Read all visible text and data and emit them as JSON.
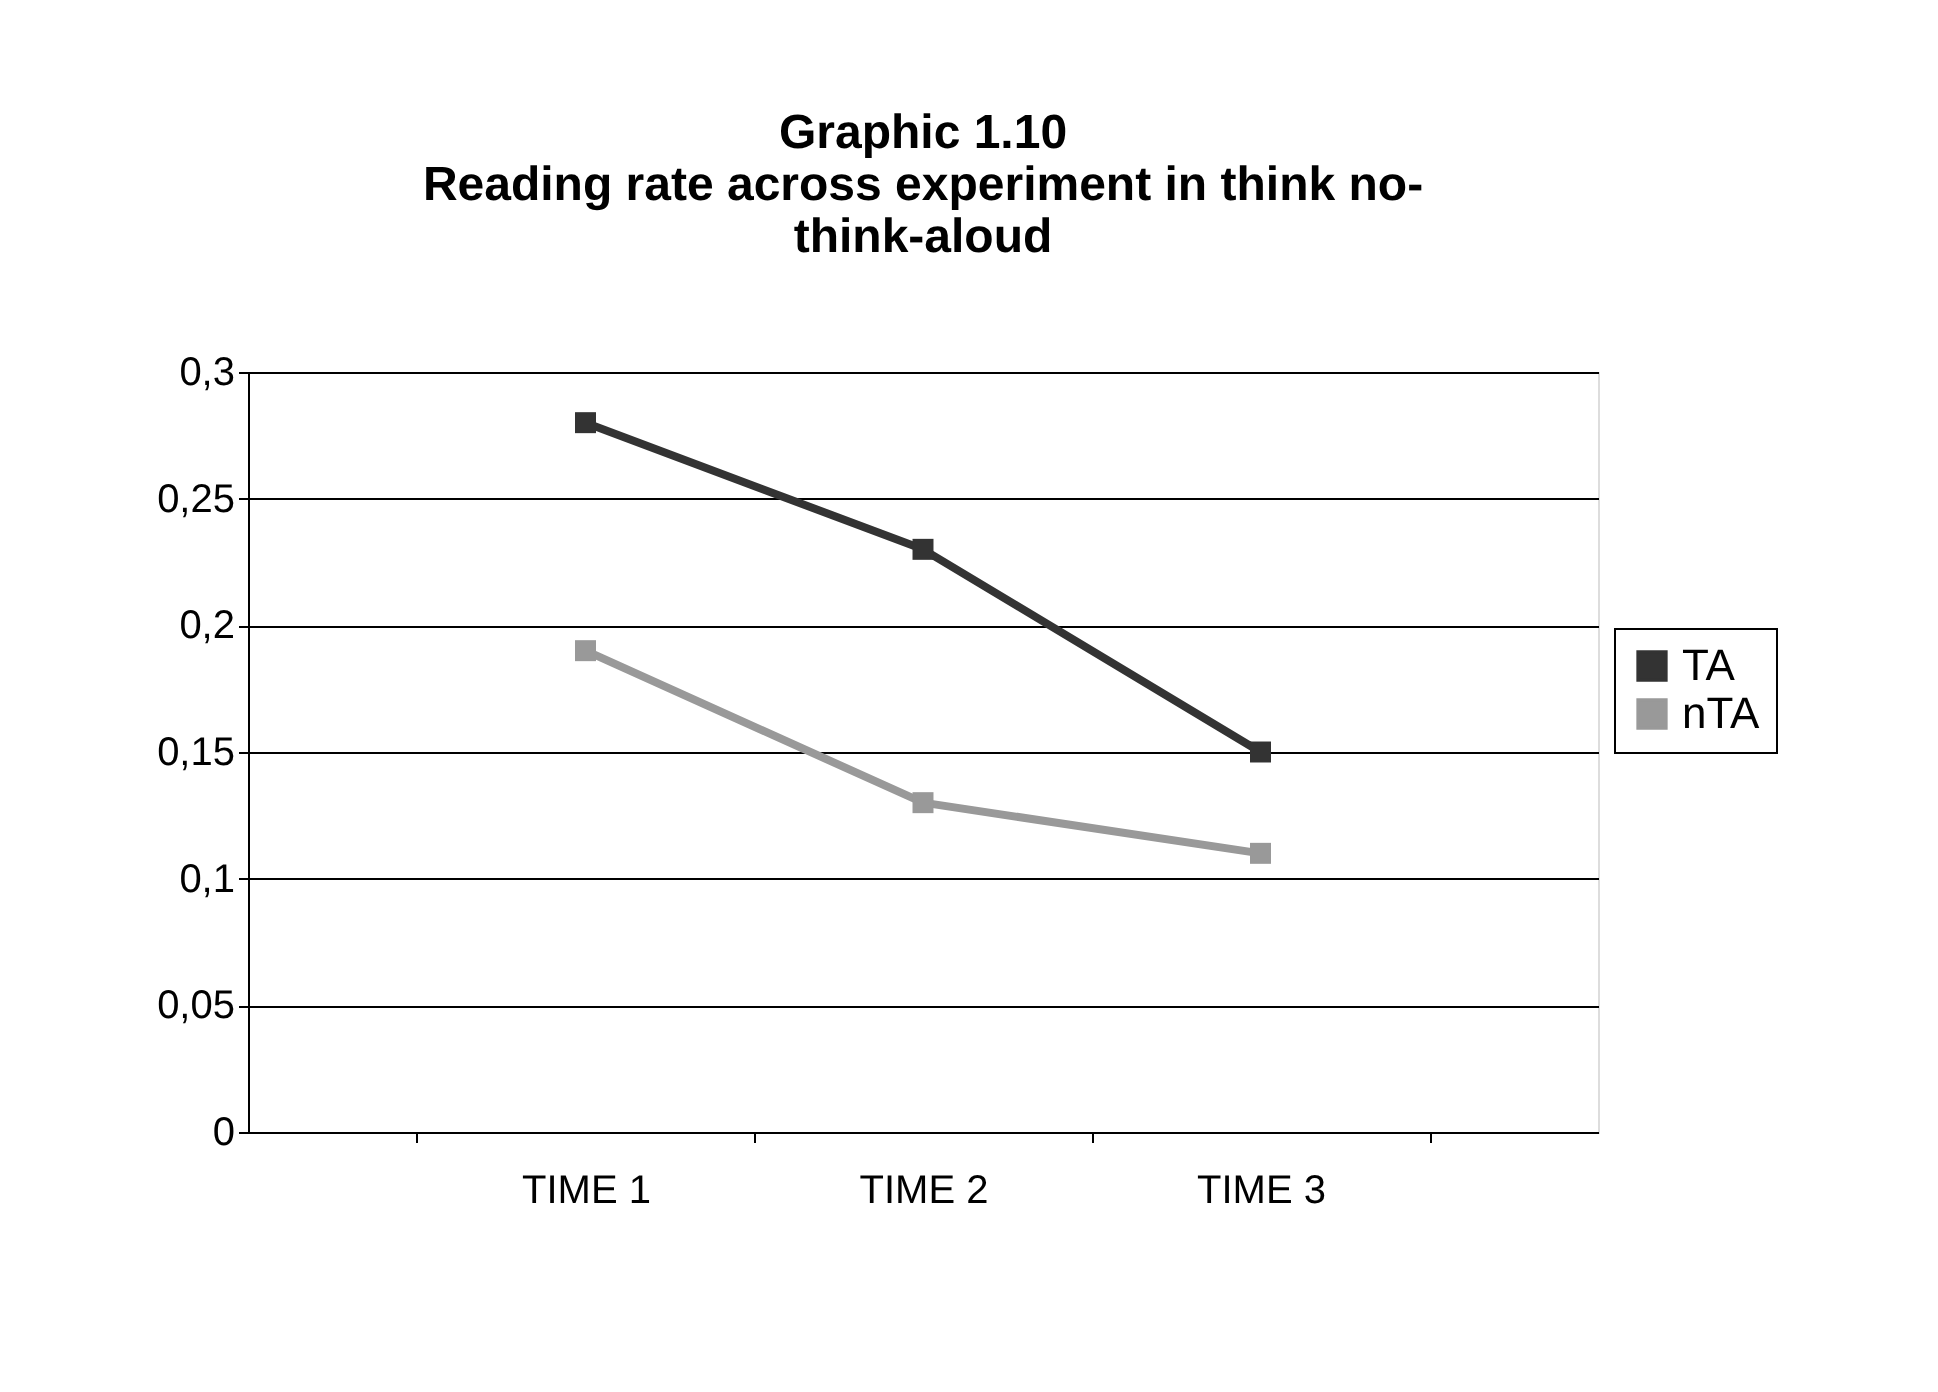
{
  "chart_data": {
    "type": "line",
    "title": "Graphic 1.10\nReading rate across experiment in think no-\nthink-aloud",
    "categories": [
      "TIME 1",
      "TIME 2",
      "TIME 3"
    ],
    "series": [
      {
        "name": "TA",
        "color": "#333333",
        "values": [
          0.28,
          0.23,
          0.15
        ]
      },
      {
        "name": "nTA",
        "color": "#999999",
        "values": [
          0.19,
          0.13,
          0.11
        ]
      }
    ],
    "ylim": [
      0,
      0.3
    ],
    "yticks": [
      0,
      {
        "value": 0.05,
        "label": "0,05"
      },
      {
        "value": 0.1,
        "label": "0,1"
      },
      {
        "value": 0.15,
        "label": "0,15"
      },
      {
        "value": 0.2,
        "label": "0,2"
      },
      {
        "value": 0.25,
        "label": "0,25"
      },
      {
        "value": 0.3,
        "label": "0,3"
      }
    ],
    "grid": "y",
    "legend": "right",
    "marker": "square",
    "line_style": "solid"
  }
}
